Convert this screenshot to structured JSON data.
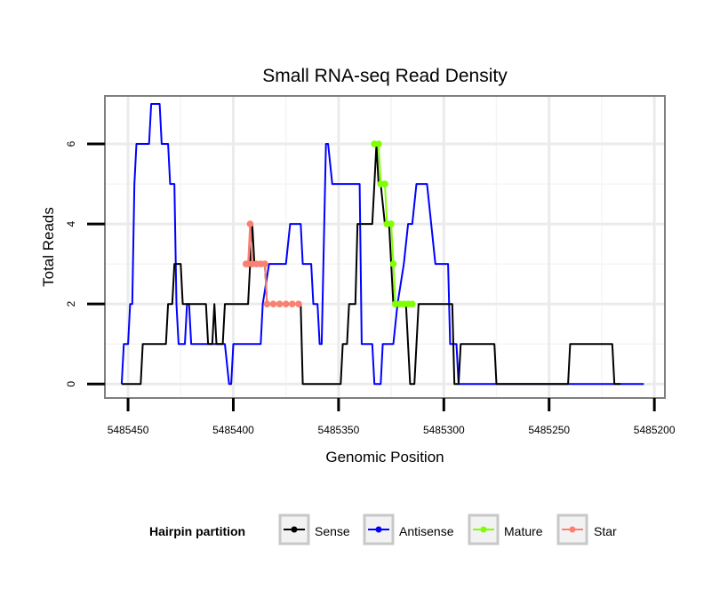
{
  "chart_data": {
    "type": "line",
    "title": "Small RNA-seq Read Density",
    "xlabel": "Genomic Position",
    "ylabel": "Total Reads",
    "xlim": [
      5485461,
      5485195
    ],
    "x_reversed": true,
    "ylim": [
      -0.35,
      7.2
    ],
    "grid": true,
    "x_ticks": [
      {
        "value": 5485450,
        "label": "5485450"
      },
      {
        "value": 5485400,
        "label": "5485400"
      },
      {
        "value": 5485350,
        "label": "5485350"
      },
      {
        "value": 5485300,
        "label": "5485300"
      },
      {
        "value": 5485250,
        "label": "5485250"
      },
      {
        "value": 5485200,
        "label": "5485200"
      }
    ],
    "y_ticks": [
      {
        "value": 0,
        "label": "0"
      },
      {
        "value": 2,
        "label": "2"
      },
      {
        "value": 4,
        "label": "4"
      },
      {
        "value": 6,
        "label": "6"
      }
    ],
    "legend": {
      "title": "Hairpin partition",
      "position": "bottom",
      "entries": [
        {
          "name": "Sense",
          "color": "#000000"
        },
        {
          "name": "Antisense",
          "color": "#0000ff"
        },
        {
          "name": "Mature",
          "color": "#7fff00"
        },
        {
          "name": "Star",
          "color": "#fa8072"
        }
      ]
    },
    "series": [
      {
        "name": "Antisense",
        "color": "#0000ff",
        "points": [
          [
            5485453,
            0
          ],
          [
            5485452,
            1
          ],
          [
            5485450,
            1
          ],
          [
            5485449,
            2
          ],
          [
            5485448,
            2
          ],
          [
            5485447,
            5
          ],
          [
            5485446,
            6
          ],
          [
            5485440,
            6
          ],
          [
            5485439,
            7
          ],
          [
            5485435,
            7
          ],
          [
            5485434,
            6
          ],
          [
            5485431,
            6
          ],
          [
            5485430,
            5
          ],
          [
            5485428,
            5
          ],
          [
            5485427,
            2
          ],
          [
            5485426,
            1
          ],
          [
            5485423,
            1
          ],
          [
            5485422,
            2
          ],
          [
            5485421,
            2
          ],
          [
            5485420,
            1
          ],
          [
            5485404,
            1
          ],
          [
            5485402,
            0
          ],
          [
            5485401,
            0
          ],
          [
            5485400,
            1
          ],
          [
            5485387,
            1
          ],
          [
            5485386,
            2
          ],
          [
            5485383,
            3
          ],
          [
            5485375,
            3
          ],
          [
            5485373,
            4
          ],
          [
            5485368,
            4
          ],
          [
            5485367,
            3
          ],
          [
            5485363,
            3
          ],
          [
            5485362,
            2
          ],
          [
            5485360,
            2
          ],
          [
            5485359,
            1
          ],
          [
            5485358,
            1
          ],
          [
            5485356,
            6
          ],
          [
            5485355,
            6
          ],
          [
            5485353,
            5
          ],
          [
            5485340,
            5
          ],
          [
            5485339,
            1
          ],
          [
            5485334,
            1
          ],
          [
            5485333,
            0
          ],
          [
            5485330,
            0
          ],
          [
            5485329,
            1
          ],
          [
            5485324,
            1
          ],
          [
            5485322,
            2
          ],
          [
            5485319,
            3
          ],
          [
            5485317,
            4
          ],
          [
            5485315,
            4
          ],
          [
            5485313,
            5
          ],
          [
            5485308,
            5
          ],
          [
            5485306,
            4
          ],
          [
            5485304,
            3
          ],
          [
            5485298,
            3
          ],
          [
            5485297,
            1
          ],
          [
            5485294,
            1
          ],
          [
            5485293,
            0
          ],
          [
            5485205,
            0
          ]
        ]
      },
      {
        "name": "Sense",
        "color": "#000000",
        "points": [
          [
            5485453,
            0
          ],
          [
            5485444,
            0
          ],
          [
            5485443,
            1
          ],
          [
            5485432,
            1
          ],
          [
            5485431,
            2
          ],
          [
            5485429,
            2
          ],
          [
            5485428,
            3
          ],
          [
            5485425,
            3
          ],
          [
            5485424,
            2
          ],
          [
            5485413,
            2
          ],
          [
            5485412,
            1
          ],
          [
            5485410,
            1
          ],
          [
            5485409,
            2
          ],
          [
            5485408,
            1
          ],
          [
            5485405,
            1
          ],
          [
            5485404,
            2
          ],
          [
            5485393,
            2
          ],
          [
            5485392,
            3
          ],
          [
            5485391,
            4
          ],
          [
            5485390,
            3
          ],
          [
            5485385,
            3
          ],
          [
            5485384,
            2
          ],
          [
            5485368,
            2
          ],
          [
            5485367,
            0
          ],
          [
            5485349,
            0
          ],
          [
            5485348,
            1
          ],
          [
            5485346,
            1
          ],
          [
            5485345,
            2
          ],
          [
            5485342,
            2
          ],
          [
            5485341,
            4
          ],
          [
            5485334,
            4
          ],
          [
            5485333,
            5
          ],
          [
            5485332,
            6
          ],
          [
            5485331,
            5
          ],
          [
            5485330,
            5
          ],
          [
            5485328,
            4
          ],
          [
            5485326,
            4
          ],
          [
            5485325,
            3
          ],
          [
            5485324,
            2
          ],
          [
            5485318,
            2
          ],
          [
            5485316,
            0
          ],
          [
            5485314,
            0
          ],
          [
            5485312,
            2
          ],
          [
            5485296,
            2
          ],
          [
            5485295,
            0
          ],
          [
            5485293,
            0
          ],
          [
            5485292,
            1
          ],
          [
            5485276,
            1
          ],
          [
            5485275,
            0
          ],
          [
            5485241,
            0
          ],
          [
            5485240,
            1
          ],
          [
            5485220,
            1
          ],
          [
            5485219,
            0
          ],
          [
            5485216,
            0
          ]
        ]
      },
      {
        "name": "Star",
        "color": "#fa8072",
        "points": [
          [
            5485394,
            3
          ],
          [
            5485393,
            3
          ],
          [
            5485392,
            4
          ],
          [
            5485391,
            3
          ],
          [
            5485389,
            3
          ],
          [
            5485387,
            3
          ],
          [
            5485385,
            3
          ],
          [
            5485384,
            2
          ],
          [
            5485381,
            2
          ],
          [
            5485378,
            2
          ],
          [
            5485375,
            2
          ],
          [
            5485372,
            2
          ],
          [
            5485369,
            2
          ]
        ]
      },
      {
        "name": "Mature",
        "color": "#7fff00",
        "points": [
          [
            5485333,
            6
          ],
          [
            5485331,
            6
          ],
          [
            5485330,
            5
          ],
          [
            5485328,
            5
          ],
          [
            5485327,
            4
          ],
          [
            5485325,
            4
          ],
          [
            5485324,
            3
          ],
          [
            5485323,
            2
          ],
          [
            5485321,
            2
          ],
          [
            5485319,
            2
          ],
          [
            5485317,
            2
          ],
          [
            5485315,
            2
          ]
        ]
      }
    ]
  }
}
